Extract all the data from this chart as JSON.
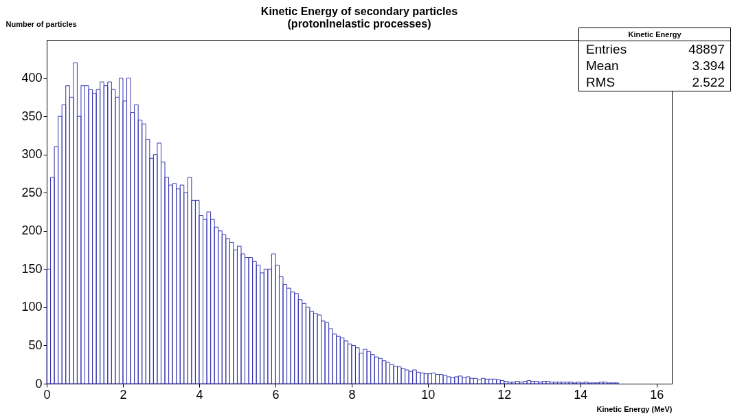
{
  "chart_data": {
    "type": "histogram",
    "title": "Kinetic Energy of secondary particles",
    "subtitle": "(protonInelastic processes)",
    "xlabel": "Kinetic Energy (MeV)",
    "ylabel": "Number of particles",
    "color": "#3535b0",
    "grid": false,
    "annotations": [
      "Kinetic Energy",
      "Entries",
      "48897",
      "Mean",
      "3.394",
      "RMS",
      "2.522"
    ],
    "xlim": [
      0,
      16.4
    ],
    "ylim": [
      0,
      450
    ],
    "xticks": [
      0,
      2,
      4,
      6,
      8,
      10,
      12,
      14,
      16
    ],
    "yticks": [
      0,
      50,
      100,
      150,
      200,
      250,
      300,
      350,
      400
    ],
    "bins": [
      0,
      0.1,
      0.2,
      0.3,
      0.4,
      0.5,
      0.6,
      0.7,
      0.8,
      0.9,
      1,
      1.1,
      1.2,
      1.3,
      1.4,
      1.5,
      1.6,
      1.7,
      1.8,
      1.9,
      2,
      2.1,
      2.2,
      2.3,
      2.4,
      2.5,
      2.6,
      2.7,
      2.8,
      2.9,
      3,
      3.1,
      3.2,
      3.3,
      3.4,
      3.5,
      3.6,
      3.7,
      3.8,
      3.9,
      4,
      4.1,
      4.2,
      4.3,
      4.4,
      4.5,
      4.6,
      4.7,
      4.8,
      4.9,
      5,
      5.1,
      5.2,
      5.3,
      5.4,
      5.5,
      5.6,
      5.7,
      5.8,
      5.9,
      6,
      6.1,
      6.2,
      6.3,
      6.4,
      6.5,
      6.6,
      6.7,
      6.8,
      6.9,
      7,
      7.1,
      7.2,
      7.3,
      7.4,
      7.5,
      7.6,
      7.7,
      7.8,
      7.9,
      8,
      8.1,
      8.2,
      8.3,
      8.4,
      8.5,
      8.6,
      8.7,
      8.8,
      8.9,
      9,
      9.1,
      9.2,
      9.3,
      9.4,
      9.5,
      9.6,
      9.7,
      9.8,
      9.9,
      10,
      10.1,
      10.2,
      10.3,
      10.4,
      10.5,
      10.6,
      10.7,
      10.8,
      10.9,
      11,
      11.1,
      11.2,
      11.3,
      11.4,
      11.5,
      11.6,
      11.7,
      11.8,
      11.9,
      12,
      12.1,
      12.2,
      12.3,
      12.4,
      12.5,
      12.6,
      12.7,
      12.8,
      12.9,
      13,
      13.1,
      13.2,
      13.3,
      13.4,
      13.5,
      13.6,
      13.7,
      13.8,
      13.9,
      14,
      14.1,
      14.2,
      14.3,
      14.4,
      14.5,
      14.6,
      14.7,
      14.8,
      14.9,
      15
    ],
    "values": [
      150,
      270,
      310,
      350,
      365,
      390,
      375,
      420,
      350,
      390,
      390,
      385,
      380,
      385,
      395,
      390,
      395,
      385,
      375,
      400,
      370,
      400,
      355,
      365,
      345,
      340,
      320,
      295,
      300,
      315,
      290,
      270,
      260,
      262,
      255,
      260,
      250,
      270,
      240,
      240,
      220,
      215,
      225,
      215,
      205,
      200,
      195,
      190,
      185,
      175,
      180,
      170,
      165,
      165,
      160,
      155,
      145,
      150,
      150,
      170,
      155,
      140,
      130,
      125,
      120,
      118,
      110,
      105,
      100,
      95,
      92,
      90,
      82,
      80,
      72,
      65,
      62,
      60,
      56,
      52,
      50,
      47,
      40,
      45,
      42,
      38,
      35,
      33,
      30,
      28,
      25,
      23,
      22,
      20,
      18,
      16,
      18,
      15,
      14,
      13,
      13,
      14,
      12,
      12,
      11,
      9,
      8,
      9,
      10,
      8,
      9,
      7,
      7,
      5,
      7,
      6,
      6,
      6,
      5,
      4,
      3,
      2,
      2,
      3,
      2,
      3,
      4,
      3,
      3,
      2,
      3,
      3,
      2,
      2,
      2,
      2,
      2,
      2,
      1,
      2,
      1,
      2,
      1,
      1,
      1,
      2,
      2,
      1,
      1,
      1
    ]
  }
}
